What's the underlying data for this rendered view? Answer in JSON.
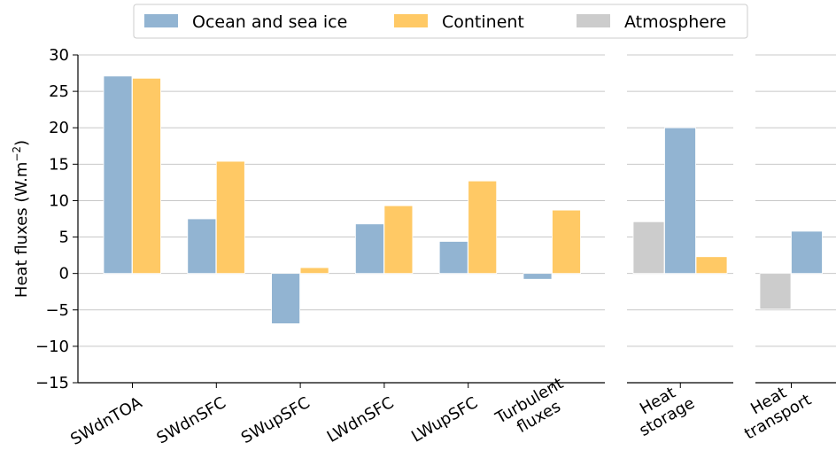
{
  "chart_data": {
    "type": "bar",
    "ylabel": "Heat fluxes (W.m",
    "ylabel_sup": "−2",
    "ylabel_close": ")",
    "ylim": [
      -15,
      30
    ],
    "yticks": [
      -15,
      -10,
      -5,
      0,
      5,
      10,
      15,
      20,
      25,
      30
    ],
    "ytick_labels": [
      "−15",
      "−10",
      "−5",
      "0",
      "5",
      "10",
      "15",
      "20",
      "25",
      "30"
    ],
    "grid": true,
    "legend_position": "top",
    "legend": [
      {
        "name": "Ocean and sea ice",
        "color": "#92b4d2"
      },
      {
        "name": "Continent",
        "color": "#ffc965"
      },
      {
        "name": "Atmosphere",
        "color": "#cccccc"
      }
    ],
    "panels": [
      {
        "categories": [
          {
            "label": [
              "SWdnTOA"
            ],
            "values": {
              "Ocean and sea ice": 27.1,
              "Continent": 26.8
            }
          },
          {
            "label": [
              "SWdnSFC"
            ],
            "values": {
              "Ocean and sea ice": 7.5,
              "Continent": 15.4
            }
          },
          {
            "label": [
              "SWupSFC"
            ],
            "values": {
              "Ocean and sea ice": -6.9,
              "Continent": 0.8
            }
          },
          {
            "label": [
              "LWdnSFC"
            ],
            "values": {
              "Ocean and sea ice": 6.8,
              "Continent": 9.3
            }
          },
          {
            "label": [
              "LWupSFC"
            ],
            "values": {
              "Ocean and sea ice": 4.4,
              "Continent": 12.7
            }
          },
          {
            "label": [
              "Turbulent",
              "fluxes"
            ],
            "values": {
              "Ocean and sea ice": -0.8,
              "Continent": 8.7
            }
          }
        ]
      },
      {
        "categories": [
          {
            "label": [
              "Heat",
              "storage"
            ],
            "values": {
              "Atmosphere": 7.1,
              "Ocean and sea ice": 20.0,
              "Continent": 2.3
            }
          }
        ]
      },
      {
        "categories": [
          {
            "label": [
              "Heat",
              "transport"
            ],
            "values": {
              "Atmosphere": -4.9,
              "Ocean and sea ice": 5.8
            }
          }
        ]
      }
    ]
  }
}
